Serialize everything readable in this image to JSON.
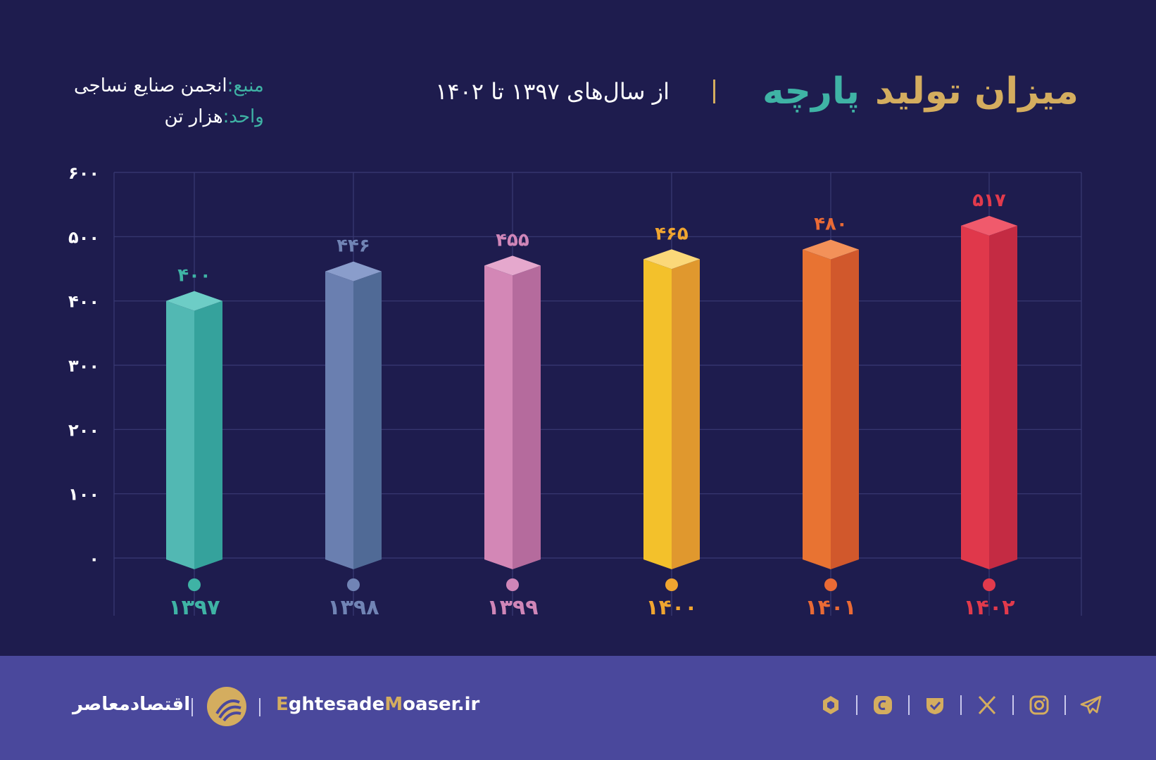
{
  "header": {
    "title_main": "میزان تولید",
    "title_accent": "پارچه",
    "subtitle": "از سال‌های ۱۳۹۷ تا ۱۴۰۲",
    "source_label": "منبع:",
    "source_value": "انجمن صنایع نساجی",
    "unit_label": "واحد:",
    "unit_value": "هزار تن"
  },
  "chart_data": {
    "type": "bar",
    "categories": [
      "۱۳۹۷",
      "۱۳۹۸",
      "۱۳۹۹",
      "۱۴۰۰",
      "۱۴۰۱",
      "۱۴۰۲"
    ],
    "values": [
      400,
      446,
      455,
      465,
      480,
      517
    ],
    "value_labels": [
      "۴۰۰",
      "۴۴۶",
      "۴۵۵",
      "۴۶۵",
      "۴۸۰",
      "۵۱۷"
    ],
    "ylim": [
      0,
      600
    ],
    "yticks": [
      0,
      100,
      200,
      300,
      400,
      500,
      600
    ],
    "ytick_labels": [
      "۰",
      "۱۰۰",
      "۲۰۰",
      "۳۰۰",
      "۴۰۰",
      "۵۰۰",
      "۶۰۰"
    ],
    "grid": true,
    "colors": [
      {
        "front": "#52b8b3",
        "side": "#35a29c",
        "top": "#6dcdc6",
        "label": "#3fb3a5"
      },
      {
        "front": "#6a7fb0",
        "side": "#506a96",
        "top": "#8a9dcb",
        "label": "#7184b5"
      },
      {
        "front": "#d387b6",
        "side": "#b56b9d",
        "top": "#e5a8cd",
        "label": "#d086b8"
      },
      {
        "front": "#f3c12b",
        "side": "#e0982e",
        "top": "#fbd879",
        "label": "#f0a530"
      },
      {
        "front": "#e87332",
        "side": "#d1582c",
        "top": "#f39159",
        "label": "#ea6a35"
      },
      {
        "front": "#e0384b",
        "side": "#c42b43",
        "top": "#f05a6c",
        "label": "#e23a4c"
      }
    ]
  },
  "footer": {
    "brand_fa": "اقتصادمعاصر",
    "site_first": "E",
    "site_part1": "ghtesade",
    "site_second": "M",
    "site_part2": "oaser",
    "site_tld": ".ir",
    "icons": [
      "telegram-icon",
      "instagram-icon",
      "x-icon",
      "eitaa-icon",
      "bale-icon",
      "rubika-icon"
    ]
  }
}
